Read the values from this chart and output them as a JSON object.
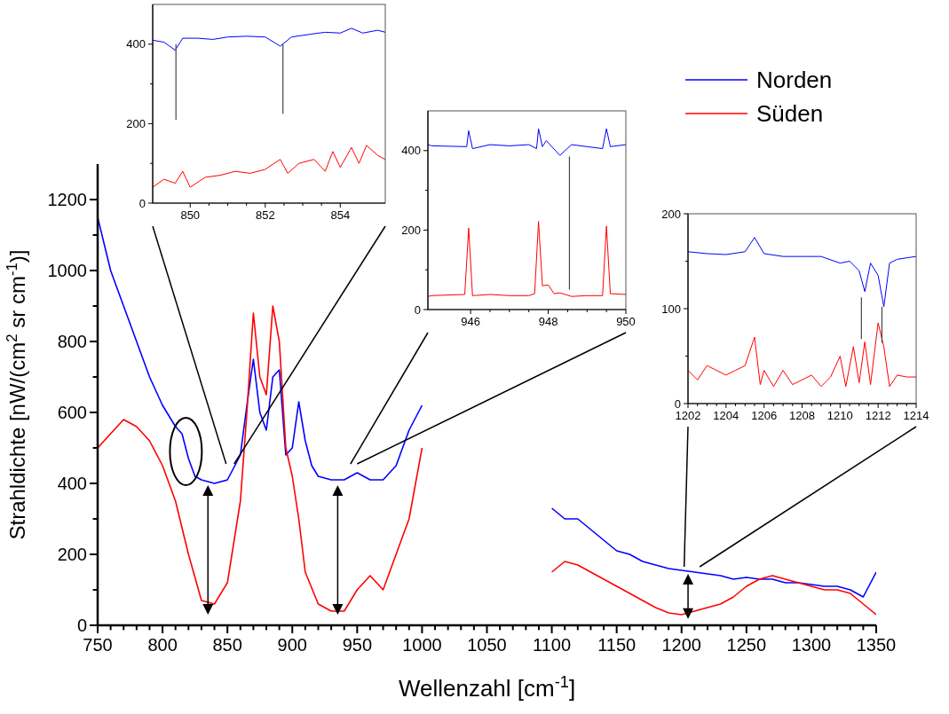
{
  "chart_data": [
    {
      "type": "line",
      "xlabel": "Wellenzahl [cm$^{-1}$]",
      "ylabel": "Strahldichte [nW/(cm$^{2}$ sr cm$^{-1}$)]",
      "xlim": [
        750,
        1350
      ],
      "ylim": [
        0,
        1300
      ],
      "xticks": [
        750,
        800,
        850,
        900,
        950,
        1000,
        1050,
        1100,
        1150,
        1200,
        1250,
        1300,
        1350
      ],
      "yticks": [
        0,
        200,
        400,
        600,
        800,
        1000,
        1200
      ],
      "legend": "top right",
      "series": [
        {
          "name": "Norden",
          "color": "#0000ff",
          "x": [
            750,
            760,
            770,
            780,
            790,
            800,
            810,
            815,
            820,
            825,
            830,
            840,
            850,
            860,
            865,
            870,
            875,
            880,
            885,
            890,
            895,
            900,
            905,
            910,
            915,
            920,
            930,
            940,
            950,
            960,
            970,
            980,
            990,
            1000,
            1050,
            1100,
            1110,
            1120,
            1130,
            1140,
            1150,
            1160,
            1170,
            1180,
            1190,
            1200,
            1210,
            1220,
            1230,
            1240,
            1250,
            1260,
            1270,
            1280,
            1290,
            1300,
            1310,
            1320,
            1330,
            1340,
            1350
          ],
          "values": [
            1150,
            1000,
            900,
            800,
            700,
            620,
            560,
            540,
            470,
            420,
            410,
            400,
            410,
            480,
            620,
            750,
            600,
            550,
            700,
            720,
            480,
            500,
            630,
            520,
            450,
            420,
            410,
            410,
            430,
            410,
            410,
            450,
            550,
            620,
            null,
            330,
            300,
            300,
            270,
            240,
            210,
            200,
            180,
            170,
            160,
            155,
            150,
            145,
            140,
            130,
            135,
            130,
            130,
            120,
            120,
            115,
            110,
            110,
            100,
            80,
            150
          ]
        },
        {
          "name": "Süden",
          "color": "#ff0000",
          "x": [
            750,
            760,
            770,
            780,
            790,
            800,
            810,
            820,
            830,
            840,
            850,
            860,
            865,
            870,
            875,
            880,
            885,
            890,
            895,
            900,
            905,
            910,
            920,
            930,
            940,
            950,
            960,
            970,
            980,
            990,
            1000,
            1050,
            1100,
            1110,
            1120,
            1130,
            1140,
            1150,
            1160,
            1170,
            1180,
            1190,
            1200,
            1210,
            1220,
            1230,
            1240,
            1250,
            1260,
            1270,
            1280,
            1290,
            1300,
            1310,
            1320,
            1330,
            1340,
            1350
          ],
          "values": [
            500,
            540,
            580,
            560,
            520,
            450,
            350,
            200,
            70,
            60,
            120,
            350,
            600,
            880,
            700,
            650,
            900,
            800,
            500,
            420,
            300,
            150,
            60,
            40,
            40,
            100,
            140,
            100,
            200,
            300,
            500,
            null,
            150,
            180,
            170,
            150,
            130,
            110,
            90,
            70,
            50,
            35,
            30,
            40,
            50,
            60,
            80,
            110,
            130,
            140,
            130,
            120,
            110,
            100,
            100,
            90,
            60,
            30
          ]
        }
      ]
    },
    {
      "type": "line",
      "xlim": [
        849,
        855.2
      ],
      "ylim": [
        0,
        500
      ],
      "xticks": [
        850,
        852,
        854
      ],
      "yticks": [
        0,
        200,
        400
      ],
      "series": [
        {
          "color": "#0000ff",
          "x": [
            849,
            849.3,
            849.6,
            849.8,
            850.2,
            850.6,
            851,
            851.5,
            852,
            852.4,
            852.7,
            853.2,
            853.6,
            854,
            854.3,
            854.6,
            855,
            855.2
          ],
          "values": [
            410,
            405,
            385,
            415,
            415,
            412,
            418,
            420,
            418,
            395,
            418,
            425,
            430,
            428,
            440,
            428,
            435,
            430
          ]
        },
        {
          "color": "#ff0000",
          "x": [
            849,
            849.3,
            849.6,
            849.8,
            850,
            850.4,
            850.8,
            851.2,
            851.6,
            852,
            852.4,
            852.6,
            852.9,
            853.3,
            853.6,
            853.8,
            854,
            854.3,
            854.5,
            854.7,
            855,
            855.2
          ],
          "values": [
            40,
            60,
            50,
            80,
            40,
            65,
            70,
            80,
            75,
            85,
            110,
            75,
            100,
            110,
            80,
            130,
            90,
            140,
            100,
            145,
            120,
            110
          ]
        }
      ]
    },
    {
      "type": "line",
      "xlim": [
        944.9,
        950
      ],
      "ylim": [
        0,
        500
      ],
      "xticks": [
        946,
        948,
        950
      ],
      "yticks": [
        0,
        200,
        400
      ],
      "series": [
        {
          "color": "#0000ff",
          "x": [
            944.9,
            945,
            945.9,
            945.95,
            946.05,
            946.5,
            947,
            947.5,
            947.7,
            947.75,
            947.85,
            947.95,
            948.3,
            948.6,
            949,
            949.4,
            949.5,
            949.6,
            950
          ],
          "values": [
            415,
            412,
            410,
            450,
            405,
            415,
            412,
            415,
            405,
            455,
            410,
            425,
            388,
            415,
            410,
            405,
            455,
            410,
            415
          ]
        },
        {
          "color": "#ff0000",
          "x": [
            944.9,
            945,
            945.85,
            945.95,
            946.05,
            946.5,
            947,
            947.5,
            947.65,
            947.75,
            947.85,
            948,
            948.15,
            948.3,
            948.6,
            949,
            949.4,
            949.5,
            949.6,
            950
          ],
          "values": [
            33,
            35,
            38,
            205,
            35,
            38,
            35,
            35,
            40,
            222,
            60,
            62,
            40,
            42,
            33,
            35,
            35,
            210,
            40,
            38
          ]
        }
      ]
    },
    {
      "type": "line",
      "xlim": [
        1202,
        1214
      ],
      "ylim": [
        0,
        200
      ],
      "xticks": [
        1202,
        1204,
        1206,
        1208,
        1210,
        1212,
        1214
      ],
      "yticks": [
        0,
        100,
        200
      ],
      "series": [
        {
          "color": "#0000ff",
          "x": [
            1202,
            1203,
            1204,
            1205,
            1205.5,
            1206,
            1207,
            1208,
            1209,
            1210,
            1210.5,
            1211,
            1211.3,
            1211.6,
            1212,
            1212.3,
            1212.6,
            1213,
            1214
          ],
          "values": [
            160,
            158,
            157,
            160,
            175,
            158,
            155,
            155,
            155,
            148,
            150,
            140,
            118,
            148,
            135,
            102,
            148,
            152,
            155
          ]
        },
        {
          "color": "#ff0000",
          "x": [
            1202,
            1202.5,
            1203,
            1203.5,
            1204,
            1204.5,
            1205,
            1205.5,
            1205.8,
            1206,
            1206.5,
            1207,
            1207.5,
            1208,
            1208.5,
            1209,
            1209.5,
            1210,
            1210.3,
            1210.7,
            1211,
            1211.3,
            1211.6,
            1212,
            1212.3,
            1212.6,
            1213,
            1213.5,
            1214
          ],
          "values": [
            35,
            25,
            40,
            35,
            30,
            35,
            40,
            70,
            20,
            35,
            18,
            35,
            20,
            25,
            30,
            18,
            28,
            50,
            18,
            60,
            22,
            65,
            20,
            85,
            60,
            18,
            30,
            28,
            28
          ]
        }
      ]
    }
  ]
}
